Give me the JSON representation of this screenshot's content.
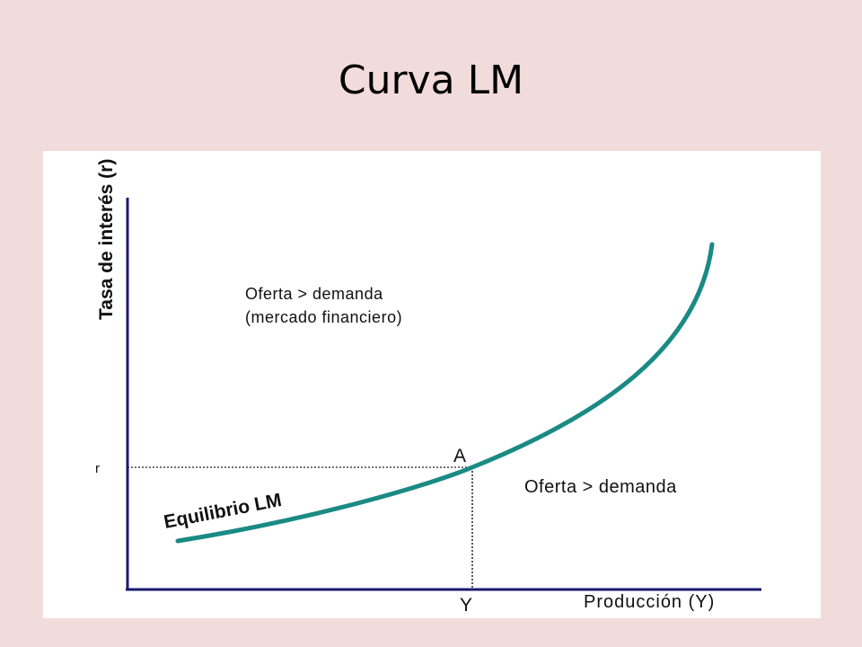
{
  "slide": {
    "title": "Curva LM"
  },
  "diagram": {
    "y_axis_label": "Tasa de interés (r)",
    "x_axis_label": "Producción (Y)",
    "r_tick_label": "r",
    "y_tick_label": "Y",
    "point_label": "A",
    "curve_label": "Equilibrio LM",
    "region_upper_line1": "Oferta > demanda",
    "region_upper_line2": "(mercado financiero)",
    "region_lower": "Oferta > demanda",
    "colors": {
      "curve": "#1a8a84",
      "axes": "#1a1a6e",
      "guides": "#222222"
    }
  }
}
